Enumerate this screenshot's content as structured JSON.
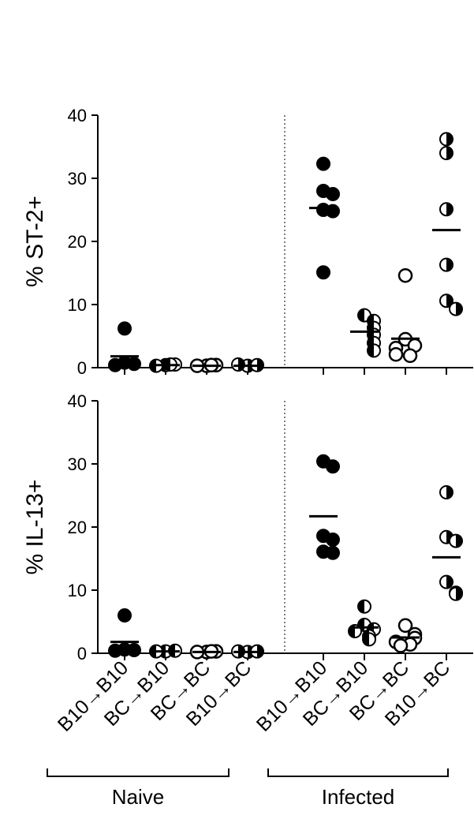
{
  "chart_data": {
    "type": "scatter",
    "categories": [
      "B10→B10",
      "BC→B10",
      "BC→BC",
      "B10→BC",
      "B10→B10",
      "BC→B10",
      "BC→BC",
      "B10→BC"
    ],
    "groups": [
      {
        "label": "Naive",
        "categories": [
          0,
          1,
          2,
          3
        ]
      },
      {
        "label": "Infected",
        "categories": [
          4,
          5,
          6,
          7
        ]
      }
    ],
    "marker_styles": [
      "filled",
      "half",
      "open",
      "half-right",
      "filled",
      "half",
      "open",
      "half-right"
    ],
    "panels": [
      {
        "ylabel": "% ST-2+",
        "ylim": [
          0,
          40
        ],
        "yticks": [
          "0",
          "10",
          "20",
          "30",
          "40"
        ],
        "means": [
          1.8,
          0.4,
          0.3,
          0.3,
          25.3,
          5.7,
          4.6,
          21.8
        ],
        "points": [
          [
            6.2,
            0.8,
            0.6,
            0.4
          ],
          [
            0.4,
            0.5,
            0.3,
            0.5
          ],
          [
            0.3,
            0.4,
            0.3,
            0.4
          ],
          [
            0.3,
            0.4,
            0.5
          ],
          [
            32.3,
            28.0,
            27.5,
            25.0,
            24.8,
            15.1
          ],
          [
            8.3,
            7.4,
            6.3,
            5.2,
            3.9,
            2.7
          ],
          [
            14.6,
            4.5,
            3.5,
            3.1,
            2.1,
            1.9
          ],
          [
            36.2,
            34.0,
            25.1,
            16.3,
            10.6,
            9.3
          ]
        ]
      },
      {
        "ylabel": "% IL-13+",
        "ylim": [
          0,
          40
        ],
        "yticks": [
          "0",
          "10",
          "20",
          "30",
          "40"
        ],
        "means": [
          1.8,
          0.3,
          0.2,
          0.2,
          21.7,
          4.1,
          2.5,
          15.2
        ],
        "points": [
          [
            6.0,
            0.6,
            0.5,
            0.4
          ],
          [
            0.3,
            0.4,
            0.3
          ],
          [
            0.2,
            0.3,
            0.2,
            0.3
          ],
          [
            0.2,
            0.3,
            0.3
          ],
          [
            30.4,
            29.6,
            18.6,
            18.0,
            16.1,
            15.9
          ],
          [
            7.4,
            4.5,
            3.8,
            3.5,
            2.7,
            2.2
          ],
          [
            4.4,
            3.0,
            2.4,
            1.8,
            1.4,
            1.2
          ],
          [
            25.5,
            18.4,
            17.8,
            11.3,
            9.6,
            9.4
          ]
        ]
      }
    ]
  }
}
